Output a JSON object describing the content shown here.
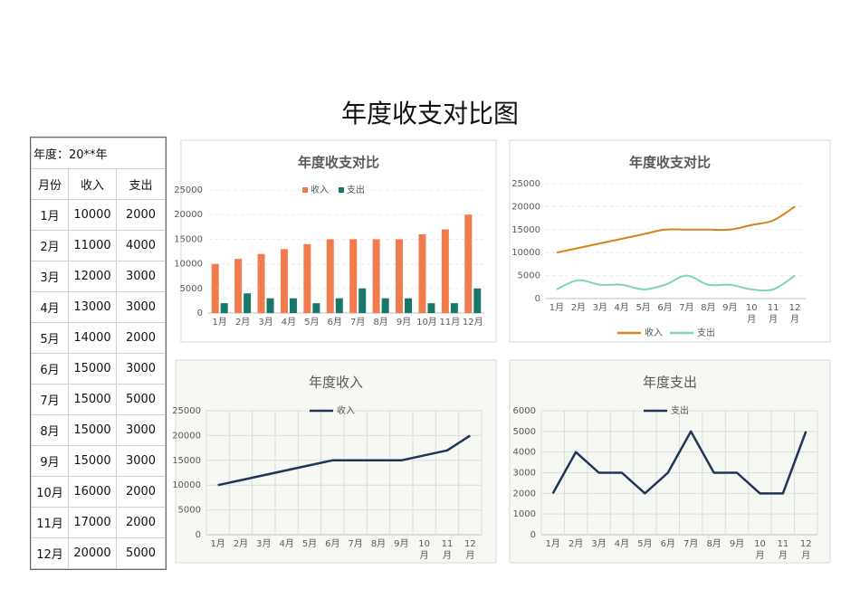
{
  "title": "年度收支对比图",
  "table": {
    "caption": "年度：20**年",
    "header": [
      "月份",
      "收入",
      "支出"
    ],
    "rows": [
      [
        "1月",
        10000,
        2000
      ],
      [
        "2月",
        11000,
        4000
      ],
      [
        "3月",
        12000,
        3000
      ],
      [
        "4月",
        13000,
        3000
      ],
      [
        "5月",
        14000,
        2000
      ],
      [
        "6月",
        15000,
        3000
      ],
      [
        "7月",
        15000,
        5000
      ],
      [
        "8月",
        15000,
        3000
      ],
      [
        "9月",
        15000,
        3000
      ],
      [
        "10月",
        16000,
        2000
      ],
      [
        "11月",
        17000,
        2000
      ],
      [
        "12月",
        20000,
        5000
      ]
    ]
  },
  "chart_data": [
    {
      "type": "bar",
      "title": "年度收支对比",
      "legend": "top",
      "grid": "horizontal",
      "categories": [
        "1月",
        "2月",
        "3月",
        "4月",
        "5月",
        "6月",
        "7月",
        "8月",
        "9月",
        "10月",
        "11月",
        "12月"
      ],
      "series": [
        {
          "name": "收入",
          "color": "#f07c4e",
          "values": [
            10000,
            11000,
            12000,
            13000,
            14000,
            15000,
            15000,
            15000,
            15000,
            16000,
            17000,
            20000
          ]
        },
        {
          "name": "支出",
          "color": "#17786a",
          "values": [
            2000,
            4000,
            3000,
            3000,
            2000,
            3000,
            5000,
            3000,
            3000,
            2000,
            2000,
            5000
          ]
        }
      ],
      "ylim": [
        0,
        25000
      ],
      "yticks": [
        0,
        5000,
        10000,
        15000,
        20000,
        25000
      ]
    },
    {
      "type": "line",
      "smooth": true,
      "title": "年度收支对比",
      "legend": "bottom",
      "grid": "horizontal",
      "categories": [
        "1月",
        "2月",
        "3月",
        "4月",
        "5月",
        "6月",
        "7月",
        "8月",
        "9月",
        "10月",
        "11月",
        "12月"
      ],
      "series": [
        {
          "name": "收入",
          "color": "#d4821a",
          "values": [
            10000,
            11000,
            12000,
            13000,
            14000,
            15000,
            15000,
            15000,
            15000,
            16000,
            17000,
            20000
          ]
        },
        {
          "name": "支出",
          "color": "#7fd3b9",
          "values": [
            2000,
            4000,
            3000,
            3000,
            2000,
            3000,
            5000,
            3000,
            3000,
            2000,
            2000,
            5000
          ]
        }
      ],
      "ylim": [
        0,
        25000
      ],
      "yticks": [
        0,
        5000,
        10000,
        15000,
        20000,
        25000
      ]
    },
    {
      "type": "line",
      "smooth": false,
      "title": "年度收入",
      "legend": "top",
      "grid": "both",
      "categories": [
        "1月",
        "2月",
        "3月",
        "4月",
        "5月",
        "6月",
        "7月",
        "8月",
        "9月",
        "10月",
        "11月",
        "12月"
      ],
      "series": [
        {
          "name": "收入",
          "color": "#1f3656",
          "values": [
            10000,
            11000,
            12000,
            13000,
            14000,
            15000,
            15000,
            15000,
            15000,
            16000,
            17000,
            20000
          ]
        }
      ],
      "ylim": [
        0,
        25000
      ],
      "yticks": [
        0,
        5000,
        10000,
        15000,
        20000,
        25000
      ]
    },
    {
      "type": "line",
      "smooth": false,
      "title": "年度支出",
      "legend": "top",
      "grid": "both",
      "categories": [
        "1月",
        "2月",
        "3月",
        "4月",
        "5月",
        "6月",
        "7月",
        "8月",
        "9月",
        "10月",
        "11月",
        "12月"
      ],
      "series": [
        {
          "name": "支出",
          "color": "#1f3656",
          "values": [
            2000,
            4000,
            3000,
            3000,
            2000,
            3000,
            5000,
            3000,
            3000,
            2000,
            2000,
            5000
          ]
        }
      ],
      "ylim": [
        0,
        6000
      ],
      "yticks": [
        0,
        1000,
        2000,
        3000,
        4000,
        5000,
        6000
      ]
    }
  ]
}
